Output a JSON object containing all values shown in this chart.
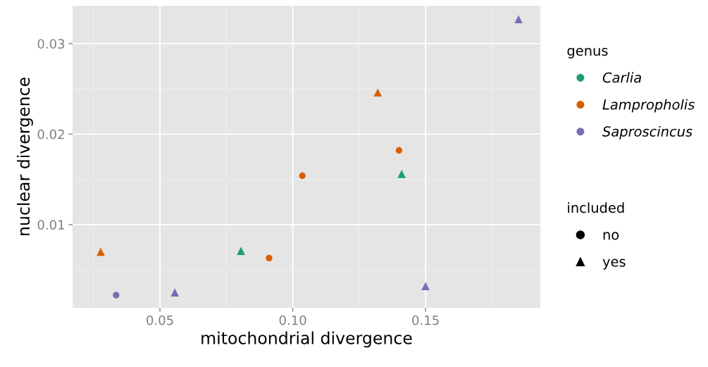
{
  "chart_data": {
    "type": "scatter",
    "xlabel": "mitochondrial divergence",
    "ylabel": "nuclear divergence",
    "xlim": [
      0.0171,
      0.1932
    ],
    "ylim": [
      0.0008,
      0.0342
    ],
    "xticks": [
      {
        "value": 0.05,
        "label": "0.05"
      },
      {
        "value": 0.1,
        "label": "0.10"
      },
      {
        "value": 0.15,
        "label": "0.15"
      }
    ],
    "yticks": [
      {
        "value": 0.01,
        "label": "0.01"
      },
      {
        "value": 0.02,
        "label": "0.02"
      },
      {
        "value": 0.03,
        "label": "0.03"
      }
    ],
    "grid": true,
    "legend": "right",
    "legend_title": [
      "genus",
      "included"
    ],
    "series": [
      {
        "name": "Carlia",
        "color": "#1b9e77",
        "x": [
          0.0805,
          0.141
        ],
        "values": [
          0.0071,
          0.0156
        ],
        "marker": [
          "triangle",
          "triangle"
        ]
      },
      {
        "name": "Lampropholis",
        "color": "#d95f02",
        "x": [
          0.0277,
          0.0911,
          0.1036,
          0.132,
          0.14
        ],
        "values": [
          0.007,
          0.0063,
          0.0154,
          0.0246,
          0.0182
        ],
        "marker": [
          "triangle",
          "circle",
          "circle",
          "triangle",
          "circle"
        ]
      },
      {
        "name": "Saproscincus",
        "color": "#7570b3",
        "x": [
          0.0335,
          0.0556,
          0.15,
          0.185
        ],
        "values": [
          0.0022,
          0.0025,
          0.0032,
          0.0327
        ],
        "marker": [
          "circle",
          "triangle",
          "triangle",
          "triangle"
        ]
      }
    ],
    "annotations": [
      "no",
      "yes"
    ]
  }
}
